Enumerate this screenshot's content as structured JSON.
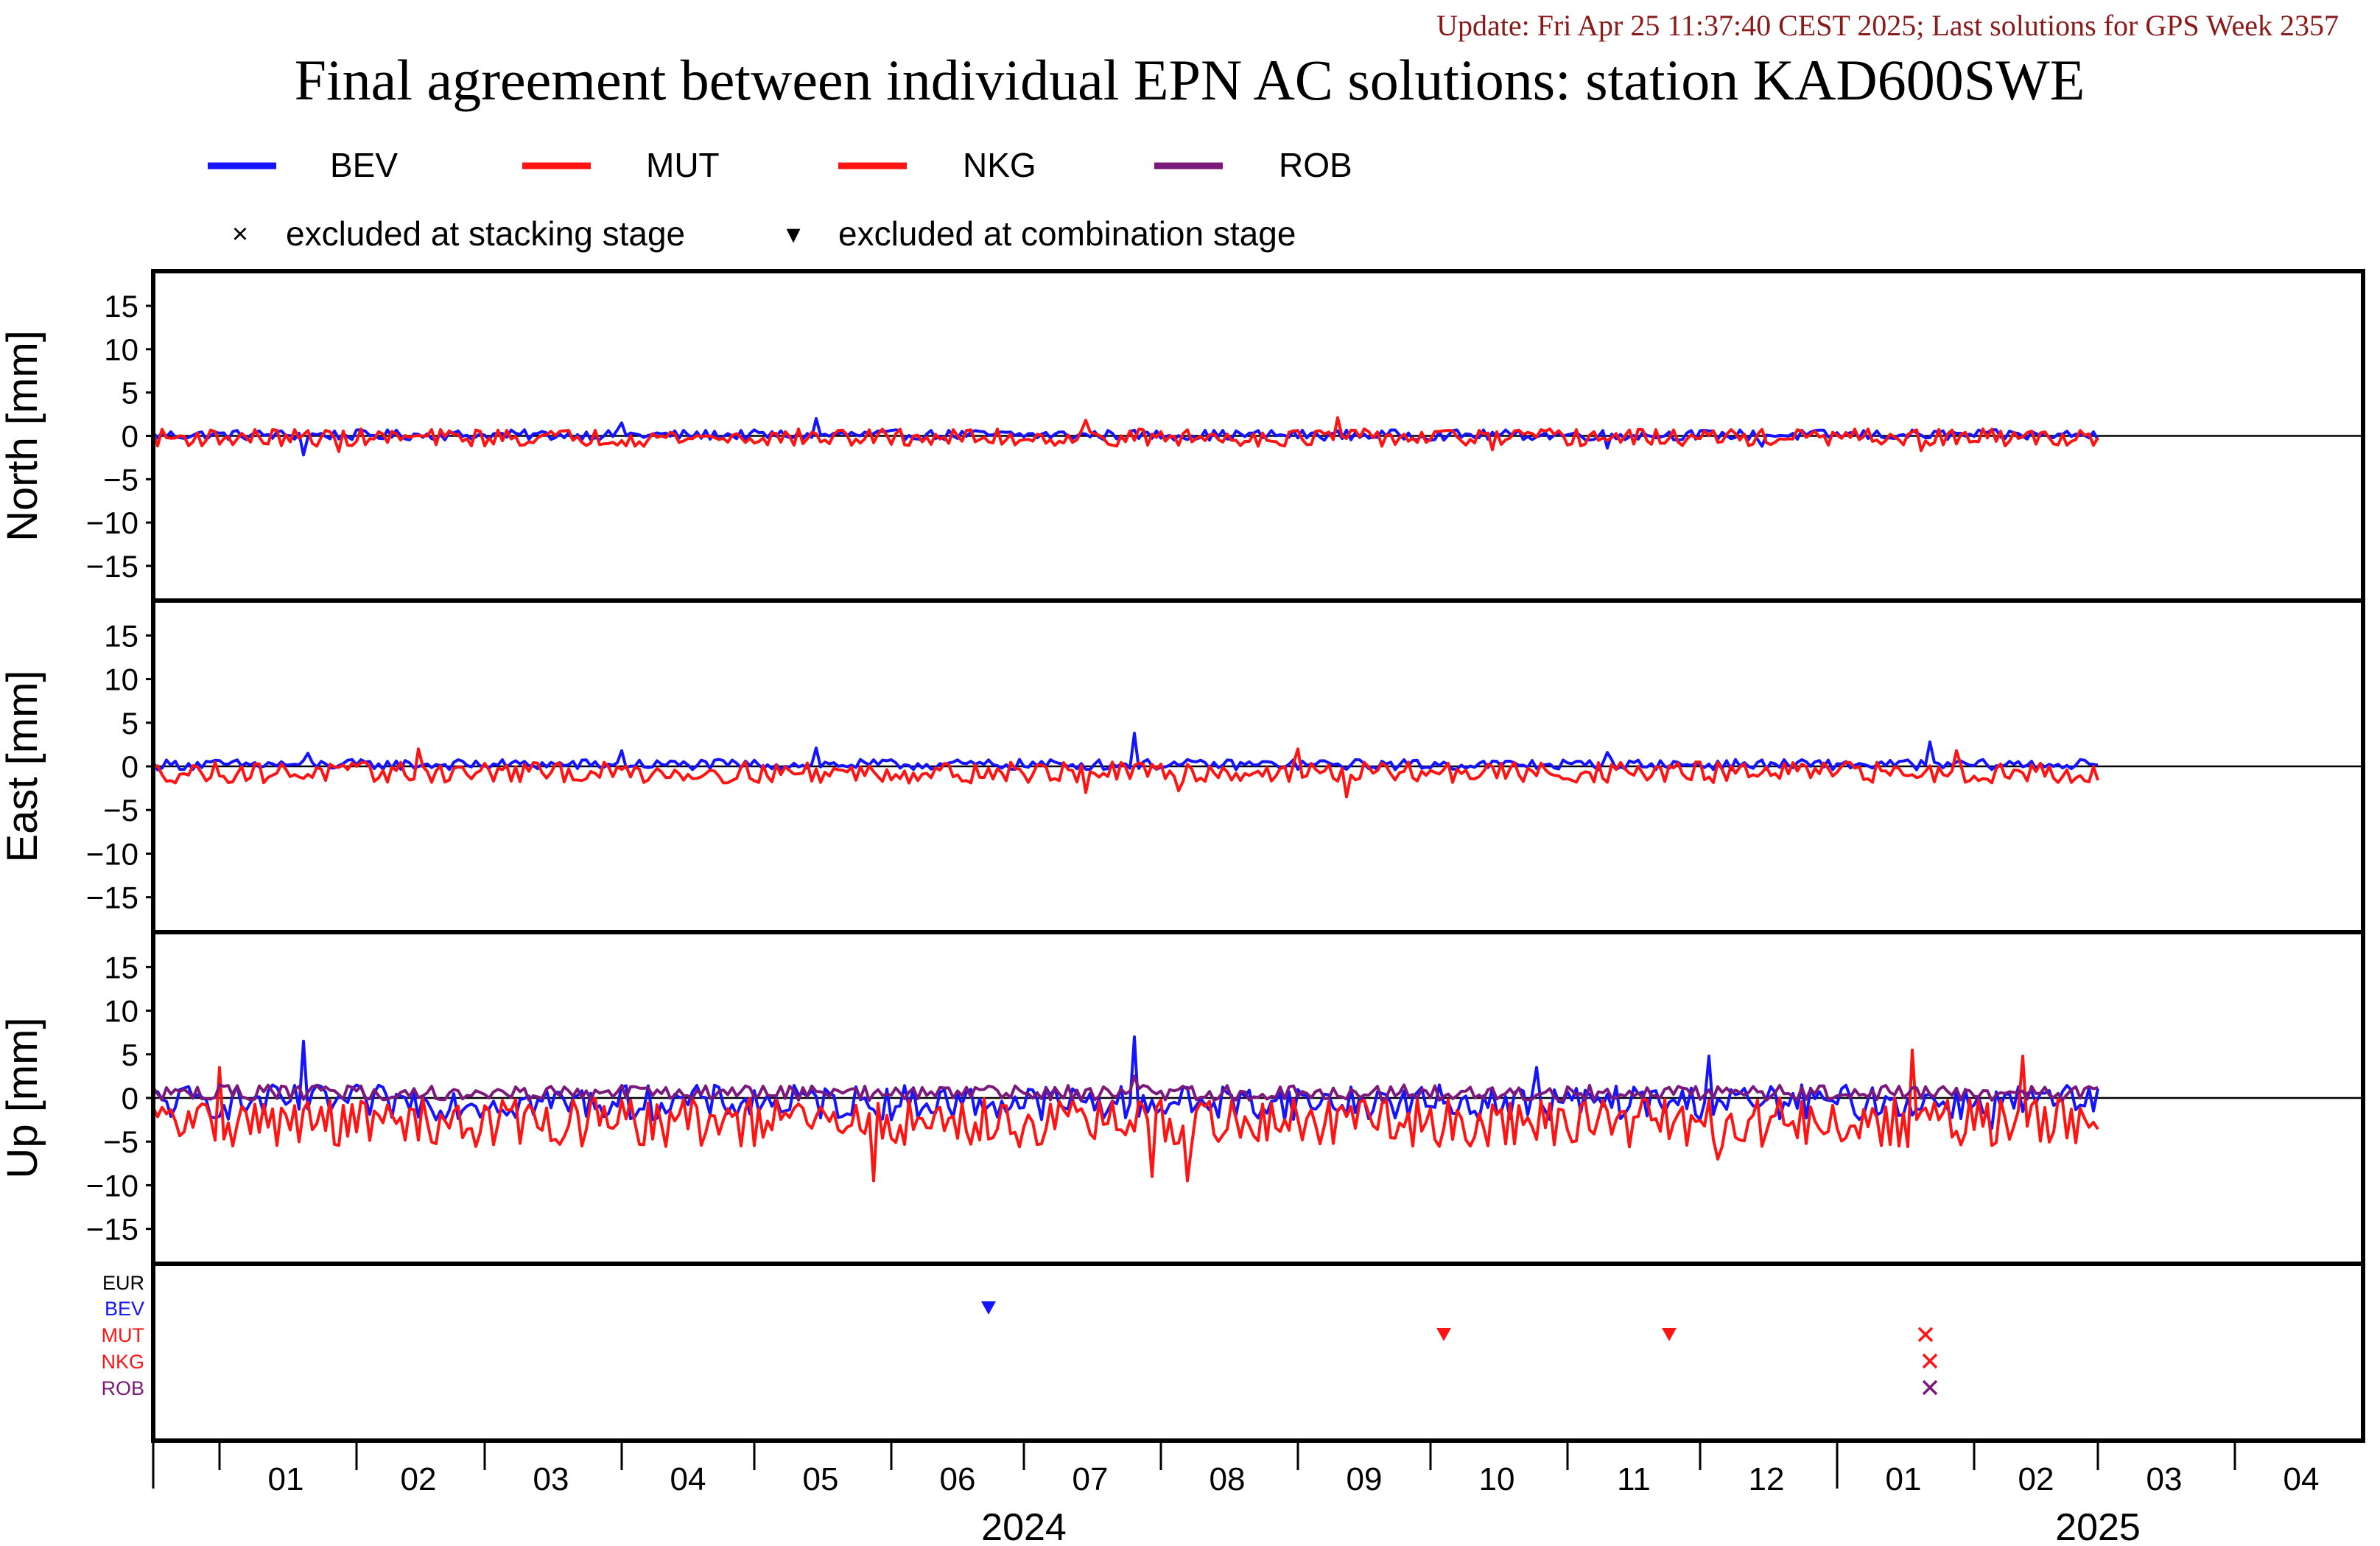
{
  "update_text": "Update: Fri Apr 25 11:37:40 CEST 2025; Last solutions for GPS Week 2357",
  "colors": {
    "update_text": "#8b1a1a",
    "BEV": "#1414ff",
    "MUT": "#ff1414",
    "NKG": "#ff1414",
    "ROB": "#7b1a7b",
    "EUR": "#000000",
    "zero_line": "#000000"
  },
  "chart_data": {
    "type": "line",
    "title": "Final agreement between individual EPN AC solutions: station KAD600SWE",
    "legend": {
      "placement": "top",
      "entries": [
        {
          "label": "BEV",
          "color": "#1414ff"
        },
        {
          "label": "MUT",
          "color": "#ff1414"
        },
        {
          "label": "NKG",
          "color": "#ff1414"
        },
        {
          "label": "ROB",
          "color": "#7b1a7b"
        }
      ],
      "markers": [
        {
          "symbol": "×",
          "label": "excluded at stacking stage"
        },
        {
          "symbol": "▾",
          "label": "excluded at combination stage"
        }
      ]
    },
    "x_axis": {
      "type": "date",
      "range": [
        "2023-12-17",
        "2025-04-30"
      ],
      "month_ticks": [
        "2024-01-01",
        "2024-02-01",
        "2024-03-01",
        "2024-04-01",
        "2024-05-01",
        "2024-06-01",
        "2024-07-01",
        "2024-08-01",
        "2024-09-01",
        "2024-10-01",
        "2024-11-01",
        "2024-12-01",
        "2025-01-01",
        "2025-02-01",
        "2025-03-01",
        "2025-04-01"
      ],
      "month_labels": [
        {
          "label": "01",
          "date": "2024-01-16"
        },
        {
          "label": "02",
          "date": "2024-02-15"
        },
        {
          "label": "03",
          "date": "2024-03-16"
        },
        {
          "label": "04",
          "date": "2024-04-16"
        },
        {
          "label": "05",
          "date": "2024-05-16"
        },
        {
          "label": "06",
          "date": "2024-06-16"
        },
        {
          "label": "07",
          "date": "2024-07-16"
        },
        {
          "label": "08",
          "date": "2024-08-16"
        },
        {
          "label": "09",
          "date": "2024-09-16"
        },
        {
          "label": "10",
          "date": "2024-10-16"
        },
        {
          "label": "11",
          "date": "2024-11-16"
        },
        {
          "label": "12",
          "date": "2024-12-16"
        },
        {
          "label": "01",
          "date": "2025-01-16"
        },
        {
          "label": "02",
          "date": "2025-02-15"
        },
        {
          "label": "03",
          "date": "2025-03-16"
        },
        {
          "label": "04",
          "date": "2025-04-16"
        }
      ],
      "year_labels": [
        {
          "label": "2024",
          "date": "2024-07-01"
        },
        {
          "label": "2025",
          "date": "2025-03-01"
        }
      ],
      "year_boundaries": [
        "2023-12-17",
        "2025-01-01"
      ]
    },
    "panels": [
      {
        "id": "north",
        "ylabel": "North [mm]",
        "ylim": [
          -19,
          19
        ],
        "yticks": [
          15,
          10,
          5,
          0,
          -5,
          -10,
          -15
        ],
        "grid": false,
        "series": [
          {
            "name": "BEV",
            "color": "#1414ff",
            "amplitude": 0.6,
            "offset": 0.1,
            "spikes": [
              [
                "2024-01-20",
                -2.2
              ],
              [
                "2024-04-01",
                1.5
              ],
              [
                "2024-05-15",
                2.0
              ],
              [
                "2024-11-10",
                -1.4
              ],
              [
                "2024-12-15",
                -1.2
              ]
            ]
          },
          {
            "name": "MUT",
            "color": "#ff1414",
            "amplitude": 1.0,
            "offset": -0.2,
            "spikes": [
              [
                "2024-01-28",
                -1.8
              ],
              [
                "2024-07-15",
                1.8
              ],
              [
                "2024-09-10",
                2.1
              ],
              [
                "2024-10-15",
                -1.6
              ],
              [
                "2025-01-20",
                -1.7
              ]
            ]
          }
        ]
      },
      {
        "id": "east",
        "ylabel": "East [mm]",
        "ylim": [
          -19,
          19
        ],
        "yticks": [
          15,
          10,
          5,
          0,
          -5,
          -10,
          -15
        ],
        "grid": false,
        "series": [
          {
            "name": "BEV",
            "color": "#1414ff",
            "amplitude": 0.6,
            "offset": 0.2,
            "spikes": [
              [
                "2024-01-21",
                1.5
              ],
              [
                "2024-04-01",
                1.8
              ],
              [
                "2024-05-15",
                2.1
              ],
              [
                "2024-07-26",
                3.8
              ],
              [
                "2024-11-10",
                1.6
              ],
              [
                "2025-01-22",
                2.8
              ]
            ]
          },
          {
            "name": "MUT",
            "color": "#ff1414",
            "amplitude": 1.2,
            "offset": -0.7,
            "spikes": [
              [
                "2024-02-15",
                2.0
              ],
              [
                "2024-07-15",
                -3.0
              ],
              [
                "2024-08-05",
                -2.8
              ],
              [
                "2024-09-12",
                -3.5
              ],
              [
                "2024-09-01",
                2.0
              ],
              [
                "2025-01-28",
                1.8
              ],
              [
                "2025-03-01",
                -1.6
              ]
            ]
          }
        ]
      },
      {
        "id": "up",
        "ylabel": "Up [mm]",
        "ylim": [
          -19,
          19
        ],
        "yticks": [
          15,
          10,
          5,
          0,
          -5,
          -10,
          -15
        ],
        "grid": false,
        "series": [
          {
            "name": "BEV",
            "color": "#1414ff",
            "amplitude": 2.0,
            "offset": -0.5,
            "spikes": [
              [
                "2024-01-20",
                6.5
              ],
              [
                "2024-07-26",
                7.0
              ],
              [
                "2024-12-03",
                4.8
              ],
              [
                "2024-10-25",
                3.5
              ],
              [
                "2025-02-05",
                -3.5
              ]
            ]
          },
          {
            "name": "MUT",
            "color": "#ff1414",
            "amplitude": 2.8,
            "offset": -2.8,
            "spikes": [
              [
                "2024-05-28",
                -9.5
              ],
              [
                "2024-08-07",
                -9.5
              ],
              [
                "2024-07-30",
                -9.0
              ],
              [
                "2024-12-05",
                -7.0
              ],
              [
                "2025-01-18",
                5.5
              ],
              [
                "2025-02-12",
                4.8
              ],
              [
                "2024-01-01",
                3.5
              ]
            ]
          },
          {
            "name": "ROB",
            "color": "#7b1a7b",
            "amplitude": 0.9,
            "offset": 0.6,
            "spikes": [
              [
                "2024-07-26",
                2.5
              ]
            ]
          }
        ]
      }
    ],
    "exclusion_panel": {
      "rows": [
        {
          "label": "EUR",
          "color": "#000000"
        },
        {
          "label": "BEV",
          "color": "#1414ff"
        },
        {
          "label": "MUT",
          "color": "#ff1414"
        },
        {
          "label": "NKG",
          "color": "#ff1414"
        },
        {
          "label": "ROB",
          "color": "#7b1a7b"
        }
      ],
      "markers": [
        {
          "ac": "BEV",
          "date": "2024-06-23",
          "type": "combination"
        },
        {
          "ac": "MUT",
          "date": "2024-10-04",
          "type": "combination"
        },
        {
          "ac": "MUT",
          "date": "2024-11-24",
          "type": "combination"
        },
        {
          "ac": "MUT",
          "date": "2025-01-21",
          "type": "stacking"
        },
        {
          "ac": "NKG",
          "date": "2025-01-22",
          "type": "stacking"
        },
        {
          "ac": "ROB",
          "date": "2025-01-22",
          "type": "stacking"
        }
      ]
    },
    "data_range": [
      "2023-12-17",
      "2025-03-01"
    ]
  }
}
